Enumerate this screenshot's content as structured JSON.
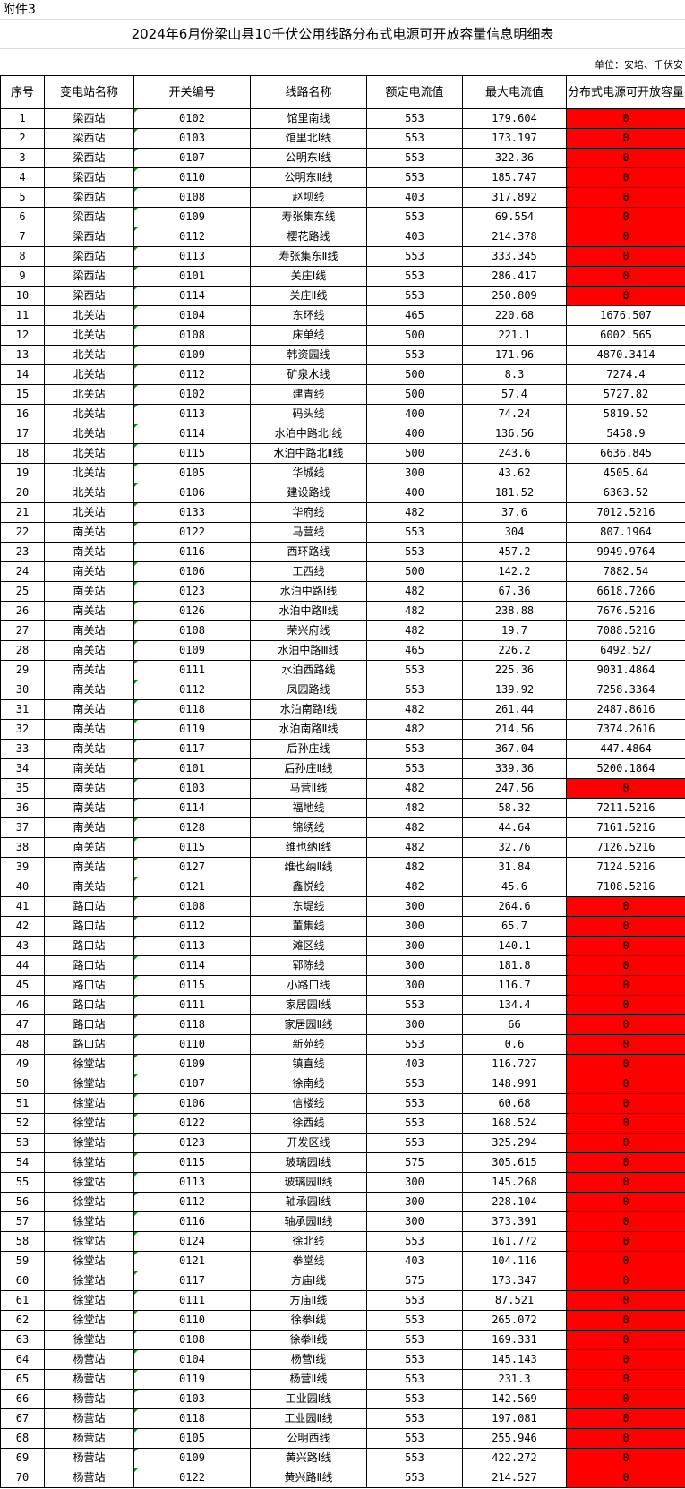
{
  "annex_label": "附件3",
  "title": "2024年6月份梁山县10千伏公用线路分布式电源可开放容量信息明细表",
  "unit": "单位：安培、千伏安",
  "colors": {
    "zero_capacity_fill": "#FF0000",
    "comment_marker": "#1A8A1A"
  },
  "columns": [
    "序号",
    "变电站名称",
    "开关编号",
    "线路名称",
    "额定电流值",
    "最大电流值",
    "分布式电源可开放容量"
  ],
  "rows": [
    [
      "1",
      "梁西站",
      "0102",
      "馆里南线",
      "553",
      "179.604",
      "0"
    ],
    [
      "2",
      "梁西站",
      "0103",
      "馆里北Ⅰ线",
      "553",
      "173.197",
      "0"
    ],
    [
      "3",
      "梁西站",
      "0107",
      "公明东Ⅰ线",
      "553",
      "322.36",
      "0"
    ],
    [
      "4",
      "梁西站",
      "0110",
      "公明东Ⅱ线",
      "553",
      "185.747",
      "0"
    ],
    [
      "5",
      "梁西站",
      "0108",
      "赵坝线",
      "403",
      "317.892",
      "0"
    ],
    [
      "6",
      "梁西站",
      "0109",
      "寿张集东线",
      "553",
      "69.554",
      "0"
    ],
    [
      "7",
      "梁西站",
      "0112",
      "樱花路线",
      "403",
      "214.378",
      "0"
    ],
    [
      "8",
      "梁西站",
      "0113",
      "寿张集东Ⅱ线",
      "553",
      "333.345",
      "0"
    ],
    [
      "9",
      "梁西站",
      "0101",
      "关庄Ⅰ线",
      "553",
      "286.417",
      "0"
    ],
    [
      "10",
      "梁西站",
      "0114",
      "关庄Ⅱ线",
      "553",
      "250.809",
      "0"
    ],
    [
      "11",
      "北关站",
      "0104",
      "东环线",
      "465",
      "220.68",
      "1676.507"
    ],
    [
      "12",
      "北关站",
      "0108",
      "床单线",
      "500",
      "221.1",
      "6002.565"
    ],
    [
      "13",
      "北关站",
      "0109",
      "韩资园线",
      "553",
      "171.96",
      "4870.3414"
    ],
    [
      "14",
      "北关站",
      "0112",
      "矿泉水线",
      "500",
      "8.3",
      "7274.4"
    ],
    [
      "15",
      "北关站",
      "0102",
      "建青线",
      "500",
      "57.4",
      "5727.82"
    ],
    [
      "16",
      "北关站",
      "0113",
      "码头线",
      "400",
      "74.24",
      "5819.52"
    ],
    [
      "17",
      "北关站",
      "0114",
      "水泊中路北Ⅰ线",
      "400",
      "136.56",
      "5458.9"
    ],
    [
      "18",
      "北关站",
      "0115",
      "水泊中路北Ⅱ线",
      "500",
      "243.6",
      "6636.845"
    ],
    [
      "19",
      "北关站",
      "0105",
      "华城线",
      "300",
      "43.62",
      "4505.64"
    ],
    [
      "20",
      "北关站",
      "0106",
      "建设路线",
      "400",
      "181.52",
      "6363.52"
    ],
    [
      "21",
      "北关站",
      "0133",
      "华府线",
      "482",
      "37.6",
      "7012.5216"
    ],
    [
      "22",
      "南关站",
      "0122",
      "马营线",
      "553",
      "304",
      "807.1964"
    ],
    [
      "23",
      "南关站",
      "0116",
      "西环路线",
      "553",
      "457.2",
      "9949.9764"
    ],
    [
      "24",
      "南关站",
      "0106",
      "工西线",
      "500",
      "142.2",
      "7882.54"
    ],
    [
      "25",
      "南关站",
      "0123",
      "水泊中路Ⅰ线",
      "482",
      "67.36",
      "6618.7266"
    ],
    [
      "26",
      "南关站",
      "0126",
      "水泊中路Ⅱ线",
      "482",
      "238.88",
      "7676.5216"
    ],
    [
      "27",
      "南关站",
      "0108",
      "荣兴府线",
      "482",
      "19.7",
      "7088.5216"
    ],
    [
      "28",
      "南关站",
      "0109",
      "水泊中路Ⅲ线",
      "465",
      "226.2",
      "6492.527"
    ],
    [
      "29",
      "南关站",
      "0111",
      "水泊西路线",
      "553",
      "225.36",
      "9031.4864"
    ],
    [
      "30",
      "南关站",
      "0112",
      "凤园路线",
      "553",
      "139.92",
      "7258.3364"
    ],
    [
      "31",
      "南关站",
      "0118",
      "水泊南路Ⅰ线",
      "482",
      "261.44",
      "2487.8616"
    ],
    [
      "32",
      "南关站",
      "0119",
      "水泊南路Ⅱ线",
      "482",
      "214.56",
      "7374.2616"
    ],
    [
      "33",
      "南关站",
      "0117",
      "后孙庄线",
      "553",
      "367.04",
      "447.4864"
    ],
    [
      "34",
      "南关站",
      "0101",
      "后孙庄Ⅱ线",
      "553",
      "339.36",
      "5200.1864"
    ],
    [
      "35",
      "南关站",
      "0103",
      "马营Ⅱ线",
      "482",
      "247.56",
      "0"
    ],
    [
      "36",
      "南关站",
      "0114",
      "福地线",
      "482",
      "58.32",
      "7211.5216"
    ],
    [
      "37",
      "南关站",
      "0128",
      "锦绣线",
      "482",
      "44.64",
      "7161.5216"
    ],
    [
      "38",
      "南关站",
      "0115",
      "维也纳Ⅰ线",
      "482",
      "32.76",
      "7126.5216"
    ],
    [
      "39",
      "南关站",
      "0127",
      "维也纳Ⅱ线",
      "482",
      "31.84",
      "7124.5216"
    ],
    [
      "40",
      "南关站",
      "0121",
      "鑫悦线",
      "482",
      "45.6",
      "7108.5216"
    ],
    [
      "41",
      "路口站",
      "0108",
      "东堤线",
      "300",
      "264.6",
      "0"
    ],
    [
      "42",
      "路口站",
      "0112",
      "董集线",
      "300",
      "65.7",
      "0"
    ],
    [
      "43",
      "路口站",
      "0113",
      "滩区线",
      "300",
      "140.1",
      "0"
    ],
    [
      "44",
      "路口站",
      "0114",
      "郓陈线",
      "300",
      "181.8",
      "0"
    ],
    [
      "45",
      "路口站",
      "0115",
      "小路口线",
      "300",
      "116.7",
      "0"
    ],
    [
      "46",
      "路口站",
      "0111",
      "家居园Ⅰ线",
      "553",
      "134.4",
      "0"
    ],
    [
      "47",
      "路口站",
      "0118",
      "家居园Ⅱ线",
      "300",
      "66",
      "0"
    ],
    [
      "48",
      "路口站",
      "0110",
      "新苑线",
      "553",
      "0.6",
      "0"
    ],
    [
      "49",
      "徐堂站",
      "0109",
      "镇直线",
      "403",
      "116.727",
      "0"
    ],
    [
      "50",
      "徐堂站",
      "0107",
      "徐南线",
      "553",
      "148.991",
      "0"
    ],
    [
      "51",
      "徐堂站",
      "0106",
      "信楼线",
      "553",
      "60.68",
      "0"
    ],
    [
      "52",
      "徐堂站",
      "0122",
      "徐西线",
      "553",
      "168.524",
      "0"
    ],
    [
      "53",
      "徐堂站",
      "0123",
      "开发区线",
      "553",
      "325.294",
      "0"
    ],
    [
      "54",
      "徐堂站",
      "0115",
      "玻璃园Ⅰ线",
      "575",
      "305.615",
      "0"
    ],
    [
      "55",
      "徐堂站",
      "0113",
      "玻璃园Ⅱ线",
      "300",
      "145.268",
      "0"
    ],
    [
      "56",
      "徐堂站",
      "0112",
      "轴承园Ⅰ线",
      "300",
      "228.104",
      "0"
    ],
    [
      "57",
      "徐堂站",
      "0116",
      "轴承园Ⅱ线",
      "300",
      "373.391",
      "0"
    ],
    [
      "58",
      "徐堂站",
      "0124",
      "徐北线",
      "553",
      "161.772",
      "0"
    ],
    [
      "59",
      "徐堂站",
      "0121",
      "拳堂线",
      "403",
      "104.116",
      "0"
    ],
    [
      "60",
      "徐堂站",
      "0117",
      "方庙Ⅰ线",
      "575",
      "173.347",
      "0"
    ],
    [
      "61",
      "徐堂站",
      "0111",
      "方庙Ⅱ线",
      "553",
      "87.521",
      "0"
    ],
    [
      "62",
      "徐堂站",
      "0110",
      "徐拳Ⅰ线",
      "553",
      "265.072",
      "0"
    ],
    [
      "63",
      "徐堂站",
      "0108",
      "徐拳Ⅱ线",
      "553",
      "169.331",
      "0"
    ],
    [
      "64",
      "杨营站",
      "0104",
      "杨营Ⅰ线",
      "553",
      "145.143",
      "0"
    ],
    [
      "65",
      "杨营站",
      "0119",
      "杨营Ⅱ线",
      "553",
      "231.3",
      "0"
    ],
    [
      "66",
      "杨营站",
      "0103",
      "工业园Ⅰ线",
      "553",
      "142.569",
      "0"
    ],
    [
      "67",
      "杨营站",
      "0118",
      "工业园Ⅱ线",
      "553",
      "197.081",
      "0"
    ],
    [
      "68",
      "杨营站",
      "0105",
      "公明西线",
      "553",
      "255.946",
      "0"
    ],
    [
      "69",
      "杨营站",
      "0109",
      "黄兴路Ⅰ线",
      "553",
      "422.272",
      "0"
    ],
    [
      "70",
      "杨营站",
      "0122",
      "黄兴路Ⅱ线",
      "553",
      "214.527",
      "0"
    ]
  ]
}
